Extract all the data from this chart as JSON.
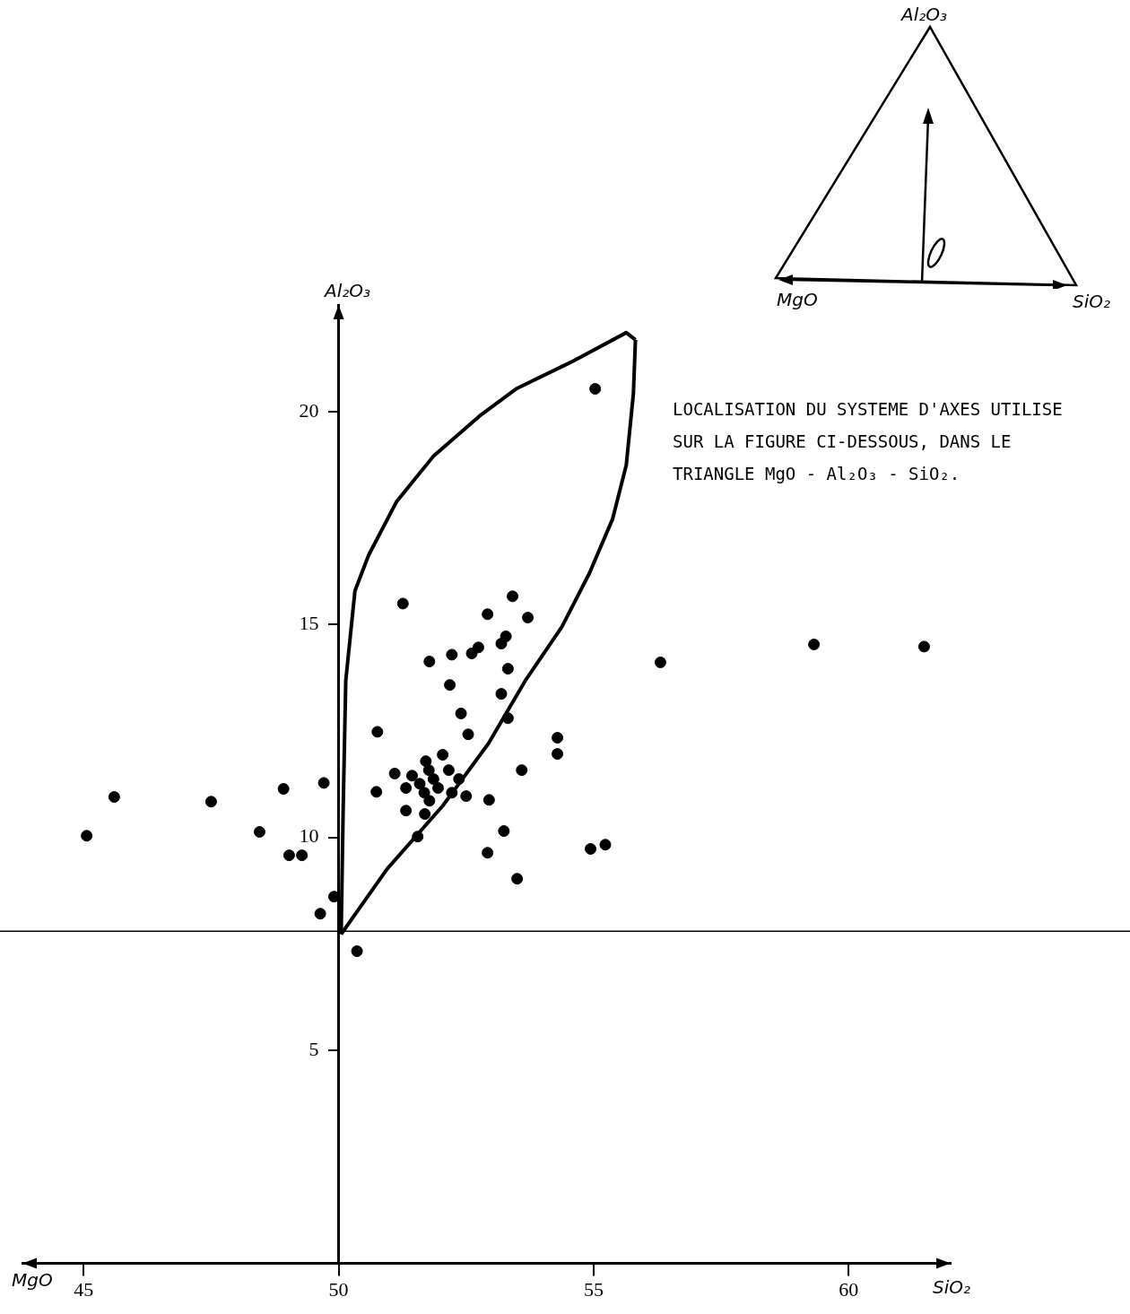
{
  "chart_data": {
    "type": "scatter",
    "xlabel": "SiO₂",
    "ylabel": "Al₂O₃",
    "xlim": [
      43.8,
      62
    ],
    "ylim": [
      0,
      22.5
    ],
    "xticks": [
      45,
      50,
      55,
      60
    ],
    "yticks": [
      5,
      10,
      15,
      20
    ],
    "legend": false,
    "marker": "circle",
    "annotations": [
      "MgO",
      "LOCALISATION DU SYSTEME D'AXES UTILISE SUR LA FIGURE CI-DESSOUS, DANS LE TRIANGLE MgO - Al₂O₃ - SiO₂.",
      "Al₂O₃",
      "MgO",
      "SiO₂"
    ],
    "ref_lines": [
      {
        "axis": "y",
        "value": 7.8,
        "color": "#000000"
      }
    ],
    "series": [
      {
        "type": "scatter",
        "color": "#000000",
        "x": [
          45.06,
          45.6,
          47.5,
          48.45,
          48.92,
          49.03,
          49.28,
          49.71,
          49.64,
          49.91,
          50.36,
          50.76,
          50.74,
          51.26,
          51.78,
          52.22,
          52.74,
          52.61,
          52.92,
          53.41,
          53.71,
          53.28,
          53.19,
          53.32,
          52.18,
          53.19,
          52.4,
          53.32,
          52.54,
          51.1,
          51.44,
          51.32,
          51.32,
          51.55,
          51.69,
          51.71,
          52.04,
          51.77,
          51.86,
          51.95,
          52.16,
          52.22,
          52.36,
          52.5,
          51.68,
          51.59,
          51.78,
          52.95,
          52.92,
          53.24,
          53.59,
          53.5,
          54.29,
          54.29,
          54.94,
          55.23,
          56.31,
          59.32,
          61.48,
          55.03
        ],
        "values": [
          10.04,
          10.95,
          10.84,
          10.13,
          11.14,
          9.58,
          9.58,
          11.28,
          8.21,
          8.61,
          7.33,
          12.48,
          11.07,
          15.49,
          14.13,
          14.29,
          14.46,
          14.32,
          15.24,
          15.66,
          15.16,
          14.72,
          14.55,
          13.96,
          13.58,
          13.37,
          12.91,
          12.8,
          12.42,
          11.5,
          11.45,
          11.16,
          10.63,
          10.02,
          10.55,
          11.79,
          11.94,
          11.58,
          11.37,
          11.16,
          11.58,
          11.05,
          11.37,
          10.97,
          11.05,
          11.26,
          10.86,
          10.88,
          9.64,
          10.15,
          11.58,
          9.03,
          12.34,
          11.96,
          9.73,
          9.83,
          14.11,
          14.53,
          14.48,
          20.53
        ]
      },
      {
        "type": "line",
        "color": "#000000",
        "marker": "none",
        "x": [
          50.05,
          50.09,
          50.14,
          50.32,
          50.59,
          51.14,
          51.86,
          52.76,
          53.48,
          54.56,
          55.64,
          55.82
        ],
        "values": [
          7.73,
          10.74,
          13.68,
          15.79,
          16.63,
          17.89,
          18.95,
          19.89,
          20.53,
          21.16,
          21.85,
          21.68
        ]
      },
      {
        "type": "line",
        "color": "#000000",
        "marker": "none",
        "x": [
          50.05,
          50.95,
          52.04,
          52.94,
          53.66,
          54.38,
          54.92,
          55.37,
          55.64,
          55.78,
          55.82
        ],
        "values": [
          7.73,
          9.26,
          10.74,
          12.21,
          13.68,
          14.95,
          16.21,
          17.47,
          18.74,
          20.42,
          21.68
        ]
      }
    ]
  }
}
